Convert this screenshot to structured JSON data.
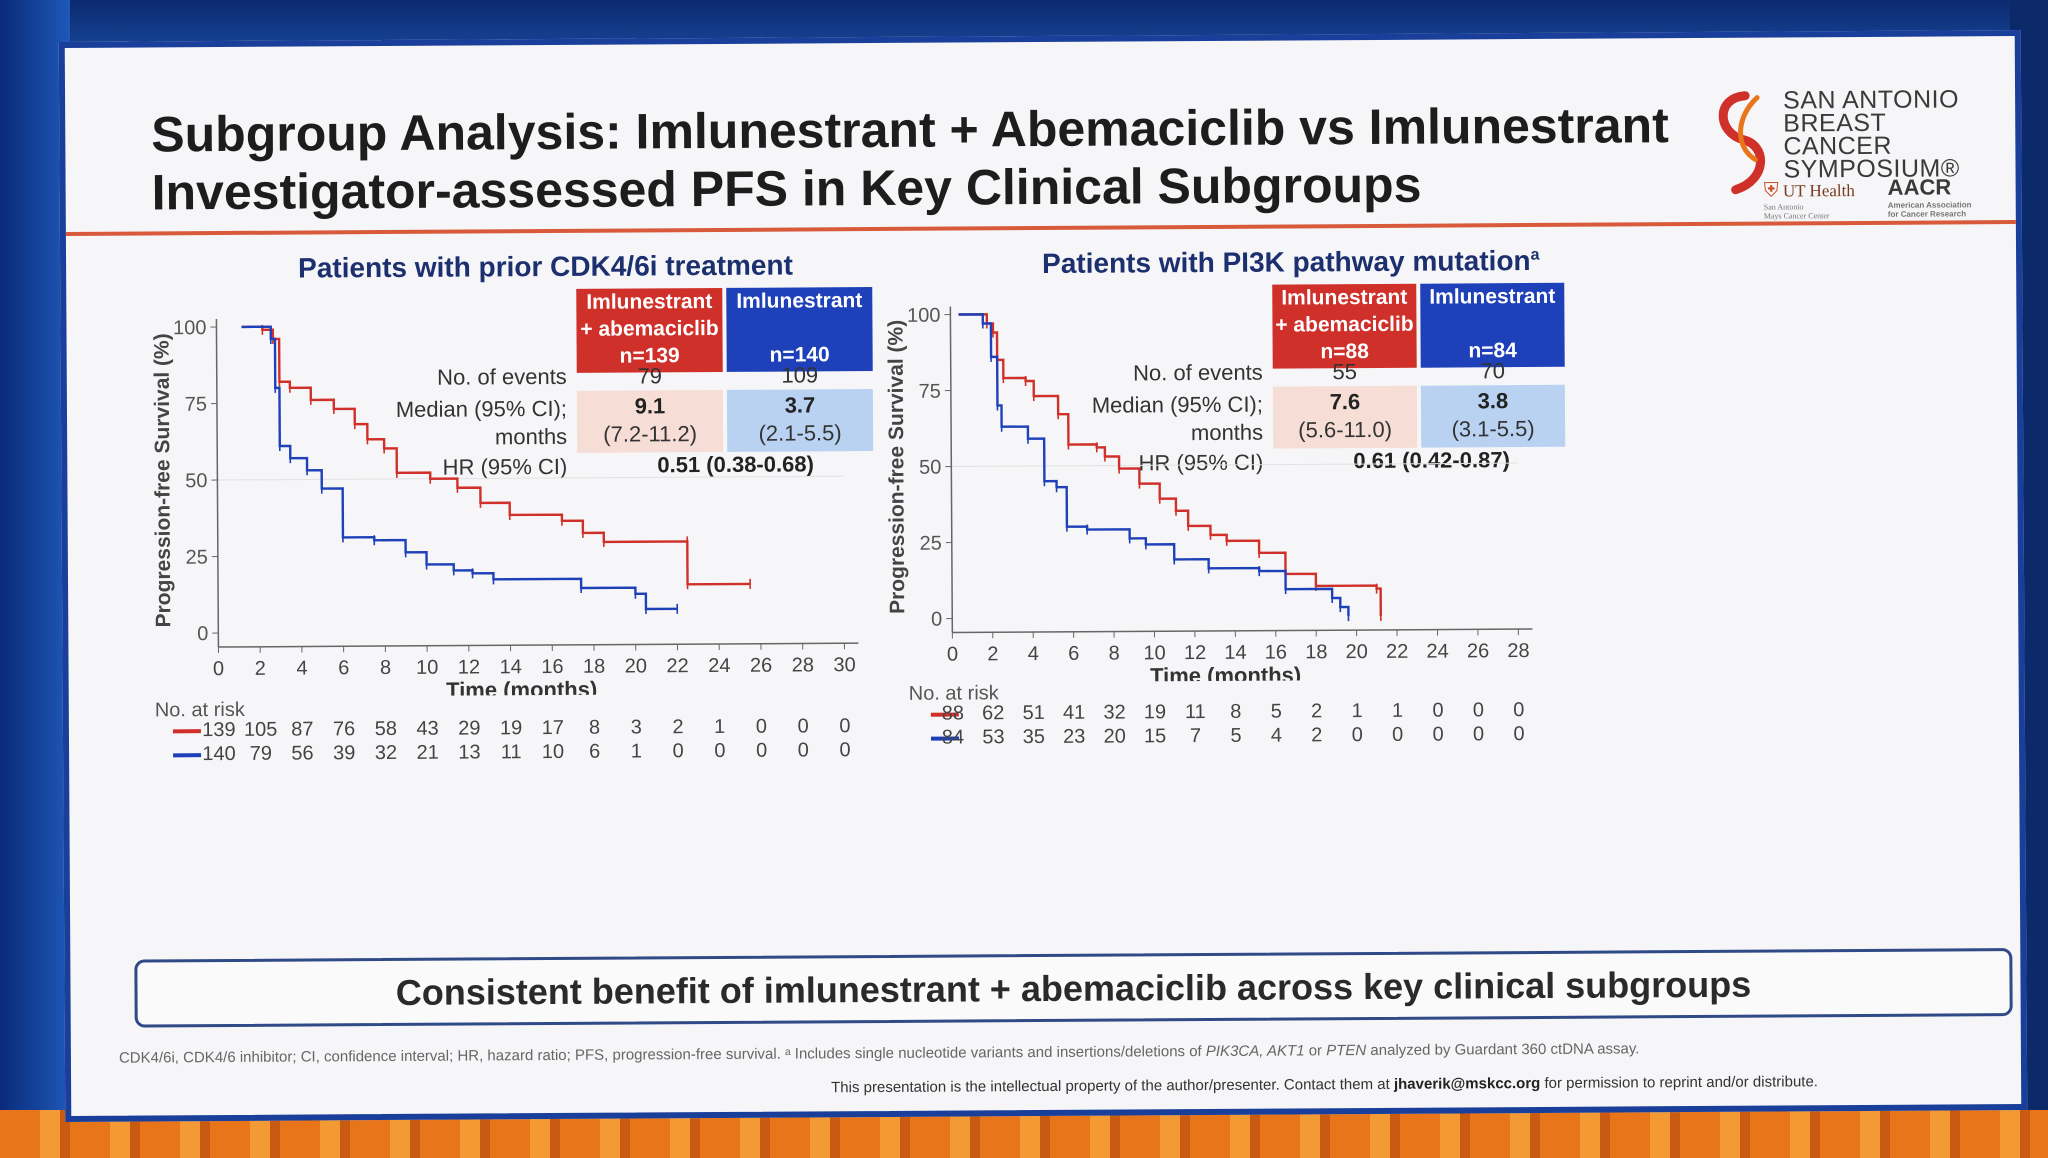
{
  "slide": {
    "title_line1": "Subgroup Analysis: Imlunestrant + Abemaciclib vs Imlunestrant",
    "title_line2": "Investigator-assessed PFS in Key Clinical Subgroups",
    "logo": {
      "line1": "SAN ANTONIO",
      "line2": "BREAST CANCER",
      "line3": "SYMPOSIUM®",
      "ut": "UT Health",
      "ut_small": "San Antonio",
      "ut_small2": "Mays Cancer Center",
      "aacr": "AACR",
      "aacr_small": "American Association",
      "aacr_small2": "for Cancer Research"
    },
    "conclusion": "Consistent benefit of imlunestrant + abemaciclib across key clinical subgroups",
    "footnote_a": "CDK4/6i, CDK4/6 inhibitor; CI, confidence interval; HR, hazard ratio; PFS, progression-free survival. ᵃ Includes single nucleotide variants and insertions/deletions of ",
    "footnote_genes": "PIK3CA, AKT1",
    "footnote_or": " or ",
    "footnote_pten": "PTEN",
    "footnote_b": " analyzed by Guardant 360 ctDNA assay.",
    "ip_a": "This presentation is the intellectual property of the author/presenter. Contact them at ",
    "ip_email": "jhaverik@mskcc.org",
    "ip_b": " for permission to reprint and/or distribute."
  },
  "colors": {
    "red": "#d0302a",
    "blue": "#1e40b8",
    "accent": "#d85a3a"
  },
  "panels": [
    {
      "title": "Patients with prior CDK4/6i treatment",
      "title_sup": "",
      "arm1_header": [
        "Imlunestrant",
        "+ abemaciclib",
        "n=139"
      ],
      "arm2_header": [
        "Imlunestrant",
        "",
        "n=140"
      ],
      "events_label": "No. of events",
      "events": [
        "79",
        "109"
      ],
      "median_label1": "Median (95% CI);",
      "median_label2": "months",
      "median": [
        "9.1",
        "3.7"
      ],
      "median_ci": [
        "(7.2-11.2)",
        "(2.1-5.5)"
      ],
      "hr_label": "HR (95% CI)",
      "hr": "0.51 (0.38-0.68)",
      "risk_header": "No. at risk",
      "risk_red": [
        "139",
        "105",
        "87",
        "76",
        "58",
        "43",
        "29",
        "19",
        "17",
        "8",
        "3",
        "2",
        "1",
        "0",
        "0",
        "0"
      ],
      "risk_blue": [
        "140",
        "79",
        "56",
        "39",
        "32",
        "21",
        "13",
        "11",
        "10",
        "6",
        "1",
        "0",
        "0",
        "0",
        "0",
        "0"
      ]
    },
    {
      "title": "Patients with PI3K pathway mutation",
      "title_sup": "a",
      "arm1_header": [
        "Imlunestrant",
        "+ abemaciclib",
        "n=88"
      ],
      "arm2_header": [
        "Imlunestrant",
        "",
        "n=84"
      ],
      "events_label": "No. of events",
      "events": [
        "55",
        "70"
      ],
      "median_label1": "Median (95% CI);",
      "median_label2": "months",
      "median": [
        "7.6",
        "3.8"
      ],
      "median_ci": [
        "(5.6-11.0)",
        "(3.1-5.5)"
      ],
      "hr_label": "HR (95% CI)",
      "hr": "0.61 (0.42-0.87)",
      "risk_header": "No. at risk",
      "risk_red": [
        "88",
        "62",
        "51",
        "41",
        "32",
        "19",
        "11",
        "8",
        "5",
        "2",
        "1",
        "1",
        "0",
        "0",
        "0"
      ],
      "risk_blue": [
        "84",
        "53",
        "35",
        "23",
        "20",
        "15",
        "7",
        "5",
        "4",
        "2",
        "0",
        "0",
        "0",
        "0",
        "0"
      ]
    }
  ],
  "chart_data": [
    {
      "type": "line",
      "subtype": "kaplan-meier",
      "xlabel": "Time (months)",
      "ylabel": "Progression-free Survival (%)",
      "xlim": [
        0,
        30
      ],
      "ylim": [
        0,
        100
      ],
      "xticks": [
        0,
        2,
        4,
        6,
        8,
        10,
        12,
        14,
        16,
        18,
        20,
        22,
        24,
        26,
        28,
        30
      ],
      "yticks": [
        0,
        25,
        50,
        75,
        100
      ],
      "series": [
        {
          "color": "#d0302a",
          "x": [
            1.2,
            2.2,
            2.7,
            3.0,
            3.5,
            4.5,
            5.6,
            6.6,
            7.2,
            8.0,
            8.6,
            10.2,
            11.5,
            12.6,
            14.0,
            16.5,
            17.5,
            18.5,
            22.5,
            22.5,
            25.5
          ],
          "y": [
            100,
            99,
            96,
            82,
            80,
            76,
            73,
            68,
            63,
            60,
            52,
            50,
            47,
            42,
            38,
            36,
            32,
            29,
            29,
            15,
            15
          ]
        },
        {
          "color": "#1e40b8",
          "x": [
            1.2,
            2.6,
            2.8,
            3.0,
            3.5,
            4.3,
            5.0,
            6.0,
            7.5,
            9.0,
            10.0,
            11.3,
            12.2,
            13.2,
            17.4,
            20.0,
            20.5,
            22.0
          ],
          "y": [
            100,
            96,
            80,
            61,
            57,
            53,
            47,
            31,
            30,
            26,
            22,
            20,
            19,
            17,
            14,
            12,
            7,
            7
          ]
        }
      ]
    },
    {
      "type": "line",
      "subtype": "kaplan-meier",
      "xlabel": "Time (months)",
      "ylabel": "Progression-free Survival (%)",
      "xlim": [
        0,
        28
      ],
      "ylim": [
        0,
        100
      ],
      "xticks": [
        0,
        2,
        4,
        6,
        8,
        10,
        12,
        14,
        16,
        18,
        20,
        22,
        24,
        26,
        28
      ],
      "yticks": [
        0,
        25,
        50,
        75,
        100
      ],
      "series": [
        {
          "color": "#d0302a",
          "x": [
            0.4,
            1.8,
            2.1,
            2.3,
            2.6,
            3.7,
            4.1,
            5.3,
            5.8,
            7.2,
            7.6,
            8.3,
            9.3,
            10.3,
            11.1,
            11.7,
            12.8,
            13.6,
            15.2,
            16.5,
            18.0,
            21.0,
            21.2
          ],
          "y": [
            100,
            97,
            94,
            85,
            79,
            78,
            73,
            67,
            57,
            56,
            53,
            49,
            44,
            39,
            35,
            30,
            27,
            25,
            21,
            14,
            10,
            9,
            0
          ]
        },
        {
          "color": "#1e40b8",
          "x": [
            0.4,
            1.6,
            2.0,
            2.3,
            2.5,
            3.8,
            4.6,
            5.2,
            5.7,
            6.7,
            8.8,
            9.6,
            11.0,
            12.7,
            15.2,
            16.5,
            18.8,
            19.2,
            19.6
          ],
          "y": [
            100,
            97,
            86,
            70,
            63,
            59,
            45,
            43,
            30,
            29,
            26,
            24,
            19,
            16,
            15,
            9,
            6,
            3,
            0
          ]
        }
      ]
    }
  ]
}
